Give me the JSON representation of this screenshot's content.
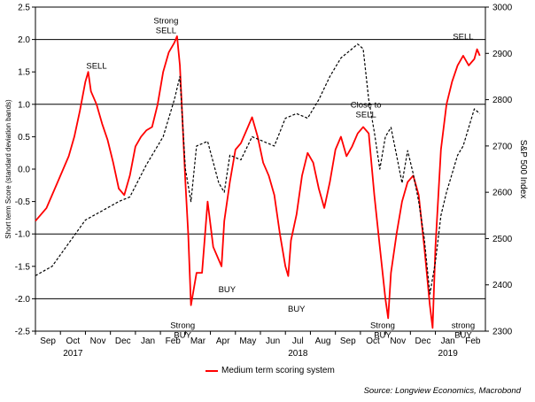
{
  "chart_data": {
    "type": "line",
    "xlabels": {
      "months": [
        "Sep",
        "Oct",
        "Nov",
        "Dec",
        "Jan",
        "Feb",
        "Mar",
        "Apr",
        "May",
        "Jun",
        "Jul",
        "Aug",
        "Sep",
        "Oct",
        "Nov",
        "Dec",
        "Jan",
        "Feb"
      ],
      "years": [
        "2017",
        "2018",
        "2019"
      ]
    },
    "y_left": {
      "label": "Short term Score (standard deviation bands)",
      "ylim": [
        -2.5,
        2.5
      ],
      "ticks": [
        "2.5",
        "2.0",
        "1.5",
        "1.0",
        "0.5",
        "0.0",
        "-0.5",
        "-1.0",
        "-1.5",
        "-2.0",
        "-2.5"
      ]
    },
    "y_right": {
      "label": "S&P 500 Index",
      "ylim": [
        2300,
        3000
      ],
      "ticks": [
        "3000",
        "2900",
        "2800",
        "2700",
        "2600",
        "2500",
        "2400",
        "2300"
      ]
    },
    "reference_lines": [
      2.0,
      1.0,
      -1.0,
      -2.0
    ],
    "grid": false,
    "series": [
      {
        "name": "Medium term scoring system",
        "color": "#ff0000",
        "style": "solid",
        "axis": "left",
        "points": [
          [
            0,
            -0.8
          ],
          [
            2,
            -0.6
          ],
          [
            4,
            -0.2
          ],
          [
            6,
            0.2
          ],
          [
            7,
            0.5
          ],
          [
            8,
            0.9
          ],
          [
            9,
            1.35
          ],
          [
            9.5,
            1.5
          ],
          [
            10,
            1.2
          ],
          [
            11,
            1.0
          ],
          [
            12,
            0.7
          ],
          [
            13,
            0.45
          ],
          [
            14,
            0.1
          ],
          [
            15,
            -0.3
          ],
          [
            16,
            -0.4
          ],
          [
            17,
            -0.1
          ],
          [
            18,
            0.35
          ],
          [
            19,
            0.5
          ],
          [
            20,
            0.6
          ],
          [
            21,
            0.65
          ],
          [
            22,
            1.0
          ],
          [
            23,
            1.5
          ],
          [
            24,
            1.8
          ],
          [
            25,
            1.95
          ],
          [
            25.5,
            2.05
          ],
          [
            26,
            1.6
          ],
          [
            27,
            -0.2
          ],
          [
            27.5,
            -1.0
          ],
          [
            28,
            -2.1
          ],
          [
            29,
            -1.6
          ],
          [
            30,
            -1.6
          ],
          [
            31,
            -0.5
          ],
          [
            32,
            -1.2
          ],
          [
            33,
            -1.4
          ],
          [
            33.5,
            -1.5
          ],
          [
            34,
            -0.8
          ],
          [
            35,
            -0.2
          ],
          [
            36,
            0.3
          ],
          [
            37,
            0.4
          ],
          [
            38,
            0.6
          ],
          [
            39,
            0.8
          ],
          [
            40,
            0.5
          ],
          [
            41,
            0.1
          ],
          [
            42,
            -0.1
          ],
          [
            43,
            -0.4
          ],
          [
            44,
            -1.0
          ],
          [
            45,
            -1.5
          ],
          [
            45.5,
            -1.65
          ],
          [
            46,
            -1.1
          ],
          [
            47,
            -0.7
          ],
          [
            48,
            -0.1
          ],
          [
            49,
            0.25
          ],
          [
            50,
            0.1
          ],
          [
            51,
            -0.3
          ],
          [
            52,
            -0.6
          ],
          [
            53,
            -0.2
          ],
          [
            54,
            0.3
          ],
          [
            55,
            0.5
          ],
          [
            56,
            0.2
          ],
          [
            57,
            0.35
          ],
          [
            58,
            0.55
          ],
          [
            59,
            0.65
          ],
          [
            60,
            0.55
          ],
          [
            61,
            -0.4
          ],
          [
            62,
            -1.2
          ],
          [
            63,
            -2.0
          ],
          [
            63.5,
            -2.3
          ],
          [
            64,
            -1.6
          ],
          [
            65,
            -1.0
          ],
          [
            66,
            -0.5
          ],
          [
            67,
            -0.2
          ],
          [
            68,
            -0.1
          ],
          [
            69,
            -0.4
          ],
          [
            70,
            -1.2
          ],
          [
            71,
            -2.1
          ],
          [
            71.5,
            -2.45
          ],
          [
            72,
            -1.2
          ],
          [
            73,
            0.3
          ],
          [
            74,
            1.0
          ],
          [
            75,
            1.35
          ],
          [
            76,
            1.6
          ],
          [
            77,
            1.75
          ],
          [
            78,
            1.6
          ],
          [
            79,
            1.7
          ],
          [
            79.5,
            1.85
          ],
          [
            80,
            1.75
          ]
        ]
      },
      {
        "name": "",
        "color": "#000000",
        "style": "dashed",
        "axis": "right",
        "points": [
          [
            0,
            2420
          ],
          [
            3,
            2440
          ],
          [
            6,
            2490
          ],
          [
            9,
            2540
          ],
          [
            12,
            2560
          ],
          [
            15,
            2580
          ],
          [
            17,
            2590
          ],
          [
            20,
            2660
          ],
          [
            23,
            2720
          ],
          [
            25,
            2800
          ],
          [
            26,
            2850
          ],
          [
            27,
            2650
          ],
          [
            28,
            2580
          ],
          [
            29,
            2700
          ],
          [
            31,
            2710
          ],
          [
            33,
            2620
          ],
          [
            34,
            2600
          ],
          [
            35,
            2680
          ],
          [
            37,
            2670
          ],
          [
            39,
            2720
          ],
          [
            41,
            2710
          ],
          [
            43,
            2700
          ],
          [
            45,
            2760
          ],
          [
            47,
            2770
          ],
          [
            49,
            2760
          ],
          [
            51,
            2800
          ],
          [
            53,
            2850
          ],
          [
            55,
            2890
          ],
          [
            57,
            2910
          ],
          [
            58,
            2920
          ],
          [
            59,
            2910
          ],
          [
            60,
            2800
          ],
          [
            61,
            2730
          ],
          [
            62,
            2650
          ],
          [
            63,
            2720
          ],
          [
            64,
            2740
          ],
          [
            65,
            2680
          ],
          [
            66,
            2620
          ],
          [
            67,
            2690
          ],
          [
            68,
            2640
          ],
          [
            69,
            2580
          ],
          [
            70,
            2500
          ],
          [
            71,
            2380
          ],
          [
            72,
            2450
          ],
          [
            73,
            2550
          ],
          [
            74,
            2600
          ],
          [
            75,
            2640
          ],
          [
            76,
            2680
          ],
          [
            77,
            2700
          ],
          [
            78,
            2740
          ],
          [
            79,
            2780
          ],
          [
            80,
            2770
          ]
        ]
      }
    ],
    "annotations": [
      {
        "text_lines": [
          "Strong",
          "SELL"
        ],
        "x": 23.5,
        "y": 2.25
      },
      {
        "text_lines": [
          "SELL"
        ],
        "x": 11,
        "y": 1.55
      },
      {
        "text_lines": [
          "Strong",
          "BUY"
        ],
        "x": 26.5,
        "y": -2.45
      },
      {
        "text_lines": [
          "BUY"
        ],
        "x": 34.5,
        "y": -1.9
      },
      {
        "text_lines": [
          "BUY"
        ],
        "x": 47,
        "y": -2.2
      },
      {
        "text_lines": [
          "Close to",
          "SELL"
        ],
        "x": 59.5,
        "y": 0.95
      },
      {
        "text_lines": [
          "Strong",
          "BUY"
        ],
        "x": 62.5,
        "y": -2.45
      },
      {
        "text_lines": [
          "SELL"
        ],
        "x": 77,
        "y": 2.0
      },
      {
        "text_lines": [
          "strong",
          "BUY"
        ],
        "x": 77,
        "y": -2.45
      }
    ],
    "legend": {
      "position": "bottom-center",
      "label": "Medium term scoring system"
    },
    "source": "Source: Longview Economics, Macrobond"
  }
}
